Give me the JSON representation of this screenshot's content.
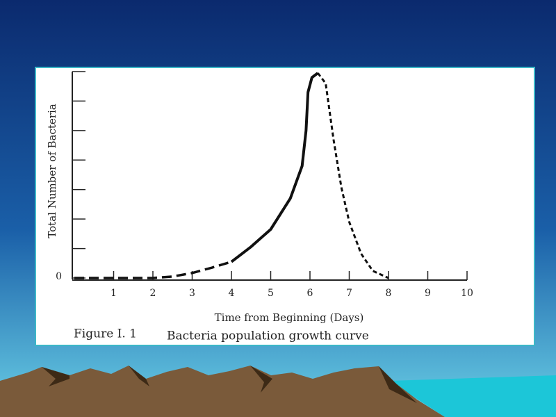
{
  "chart_data": {
    "type": "line",
    "caption_label": "Figure I. 1",
    "title": "Bacteria population growth curve",
    "xlabel": "Time from Beginning (Days)",
    "ylabel": "Total Number of Bacteria",
    "xlim": [
      0,
      10
    ],
    "ylim": [
      0,
      7
    ],
    "xticks": [
      1,
      2,
      3,
      4,
      5,
      6,
      7,
      8,
      9,
      10
    ],
    "yticks": [
      0,
      {
        "value": 1,
        "label": null
      },
      {
        "value": 2,
        "label": null
      },
      {
        "value": 3,
        "label": null
      },
      {
        "value": 4,
        "label": null
      },
      {
        "value": 5,
        "label": null
      },
      {
        "value": 6,
        "label": null
      },
      {
        "value": 7,
        "label": null
      }
    ],
    "series": [
      {
        "style": "dashed",
        "color": "#111111",
        "x": [
          0,
          1,
          2,
          2.5,
          3,
          3.5,
          4
        ],
        "values": [
          0,
          0,
          0,
          0.05,
          0.17,
          0.35,
          0.55
        ]
      },
      {
        "style": "solid",
        "color": "#111111",
        "x": [
          4,
          4.5,
          5,
          5.5,
          5.8,
          5.9,
          5.95,
          6.05,
          6.2
        ],
        "values": [
          0.55,
          1.06,
          1.65,
          2.7,
          3.8,
          5.0,
          6.3,
          6.8,
          6.95
        ]
      },
      {
        "style": "dotted",
        "color": "#111111",
        "x": [
          6.2,
          6.4,
          6.6,
          6.8,
          7,
          7.3,
          7.6,
          8
        ],
        "values": [
          6.95,
          6.6,
          4.7,
          3.07,
          1.9,
          0.83,
          0.24,
          0
        ]
      }
    ]
  }
}
